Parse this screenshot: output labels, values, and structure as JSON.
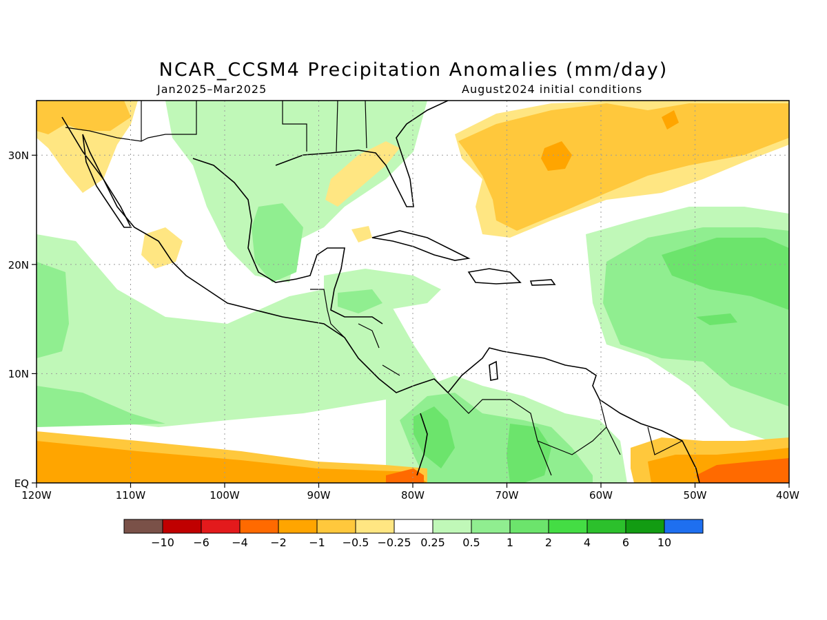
{
  "title": "NCAR_CCSM4 Precipitation Anomalies (mm/day)",
  "period": "Jan2025–Mar2025",
  "initial_conditions": "August2024 initial conditions",
  "lon_ticks": [
    "120W",
    "110W",
    "100W",
    "90W",
    "80W",
    "70W",
    "60W",
    "50W",
    "40W"
  ],
  "lat_ticks": [
    "EQ",
    "10N",
    "20N",
    "30N"
  ],
  "colorbar": {
    "labels": [
      "−10",
      "−6",
      "−4",
      "−2",
      "−1",
      "−0.5",
      "−0.25",
      "0.25",
      "0.5",
      "1",
      "2",
      "4",
      "6",
      "10"
    ],
    "colors": [
      "#7a5148",
      "#c00000",
      "#e31a1c",
      "#ff6a00",
      "#ffa500",
      "#ffc83c",
      "#ffe682",
      "#ffffff",
      "#c0f8b8",
      "#90ee90",
      "#6ce46c",
      "#44dd44",
      "#2cc02c",
      "#129c12",
      "#1e6ff0"
    ]
  },
  "map_data": {
    "extent": {
      "lon": [
        -120,
        -40
      ],
      "lat": [
        0,
        35
      ]
    },
    "field": "precipitation anomaly",
    "units": "mm/day"
  }
}
